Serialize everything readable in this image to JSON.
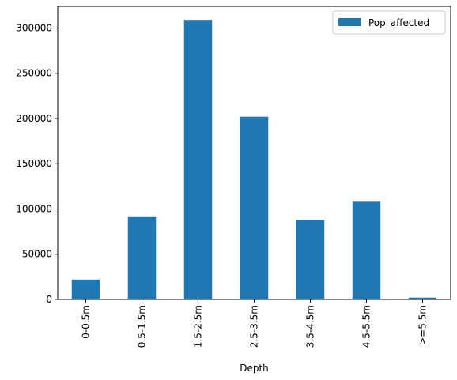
{
  "chart_data": {
    "type": "bar",
    "categories": [
      "0-0.5m",
      "0.5-1.5m",
      "1.5-2.5m",
      "2.5-3.5m",
      "3.5-4.5m",
      "4.5-5.5m",
      ">=5.5m"
    ],
    "series": [
      {
        "name": "Pop_affected",
        "color": "#1f77b4",
        "values": [
          22000,
          91000,
          309000,
          202000,
          88000,
          108000,
          2000
        ]
      }
    ],
    "xlabel": "Depth",
    "ylabel": "",
    "ylim": [
      0,
      324000
    ],
    "yticks": [
      0,
      50000,
      100000,
      150000,
      200000,
      250000,
      300000
    ],
    "ytick_labels": [
      "0",
      "50000",
      "100000",
      "150000",
      "200000",
      "250000",
      "300000"
    ],
    "grid": false,
    "legend": {
      "position": "top-right",
      "entries": [
        "Pop_affected"
      ]
    }
  }
}
